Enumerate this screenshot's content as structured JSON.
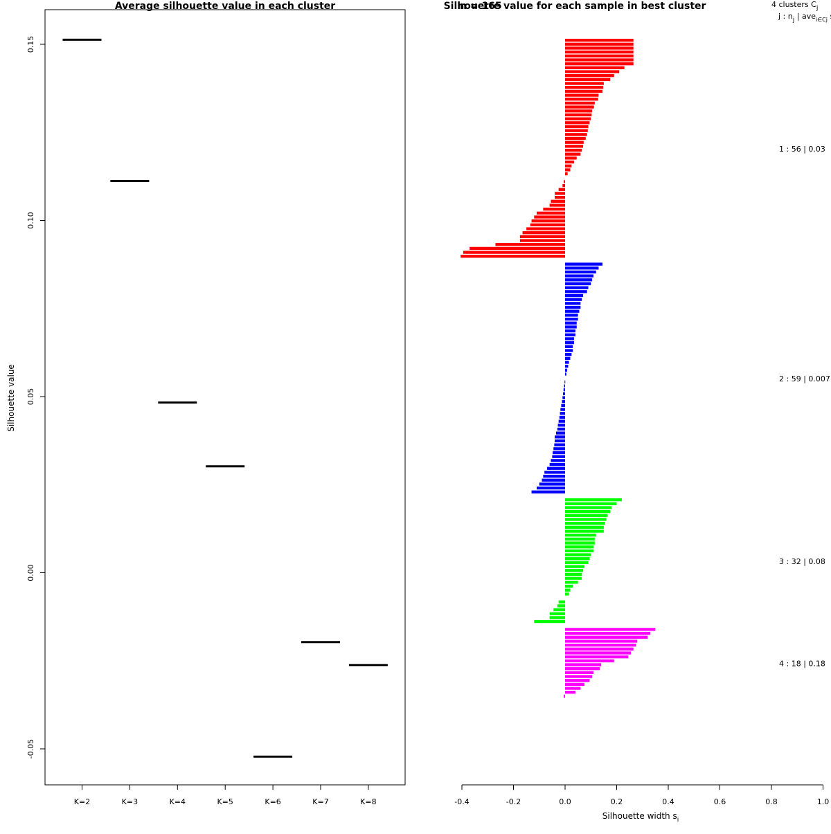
{
  "chart_data": [
    {
      "type": "scatter",
      "title": "Average silhouette value in each cluster",
      "xlabel": "",
      "ylabel": "Silhouette value",
      "categories": [
        "K=2",
        "K=3",
        "K=4",
        "K=5",
        "K=6",
        "K=7",
        "K=8"
      ],
      "values": [
        0.1513,
        0.1112,
        0.0483,
        0.0302,
        -0.0522,
        -0.0197,
        -0.0262
      ],
      "ylim": [
        -0.06,
        0.16
      ],
      "yticks": [
        "-0.05",
        "0.00",
        "0.05",
        "0.10",
        "0.15"
      ],
      "marker": "horizontal-segment",
      "color": "#000000"
    },
    {
      "type": "bar",
      "orientation": "horizontal",
      "title": "Silhouette value for each sample in best cluster",
      "title_overlap_text": "n = 165",
      "xlabel": "Silhouette width s",
      "xlabel_subscript": "i",
      "xlim": [
        -0.4,
        1.0
      ],
      "xticks": [
        "-0.4",
        "-0.2",
        "0.0",
        "0.2",
        "0.4",
        "0.6",
        "0.8",
        "1.0"
      ],
      "legend_header_line1": "4 clusters  C",
      "legend_header_line1_sub": "j",
      "legend_header_line2": "j :  n",
      "legend_header_line2_sub": "j",
      "legend_header_line2_rest": " | ave",
      "legend_header_line2_sub2": "i∈Cj",
      "legend_header_line2_tail": "  s",
      "clusters": [
        {
          "name": "1",
          "label": "1 :   56  |  0.03",
          "color": "#ff0000",
          "values": [
            0.265,
            0.265,
            0.265,
            0.265,
            0.265,
            0.265,
            0.265,
            0.23,
            0.21,
            0.19,
            0.175,
            0.15,
            0.148,
            0.145,
            0.13,
            0.128,
            0.115,
            0.112,
            0.105,
            0.103,
            0.1,
            0.095,
            0.09,
            0.088,
            0.085,
            0.08,
            0.072,
            0.07,
            0.065,
            0.06,
            0.045,
            0.035,
            0.025,
            0.02,
            0.01,
            0.0,
            -0.005,
            -0.01,
            -0.025,
            -0.04,
            -0.04,
            -0.055,
            -0.06,
            -0.085,
            -0.11,
            -0.12,
            -0.13,
            -0.135,
            -0.15,
            -0.165,
            -0.175,
            -0.175,
            -0.27,
            -0.37,
            -0.395,
            -0.405
          ]
        },
        {
          "name": "2",
          "label": "2 :   59  |  0.007",
          "color": "#0000ff",
          "values": [
            0.145,
            0.13,
            0.12,
            0.11,
            0.105,
            0.1,
            0.09,
            0.085,
            0.07,
            0.065,
            0.06,
            0.06,
            0.055,
            0.05,
            0.05,
            0.045,
            0.045,
            0.04,
            0.04,
            0.035,
            0.035,
            0.03,
            0.03,
            0.025,
            0.02,
            0.015,
            0.012,
            0.008,
            0.005,
            0.0,
            -0.002,
            -0.004,
            -0.006,
            -0.008,
            -0.01,
            -0.012,
            -0.015,
            -0.018,
            -0.02,
            -0.022,
            -0.025,
            -0.028,
            -0.03,
            -0.035,
            -0.04,
            -0.04,
            -0.042,
            -0.045,
            -0.048,
            -0.05,
            -0.055,
            -0.06,
            -0.07,
            -0.08,
            -0.085,
            -0.09,
            -0.1,
            -0.11,
            -0.13
          ]
        },
        {
          "name": "3",
          "label": "3 :   32  |  0.08",
          "color": "#00ff00",
          "values": [
            0.22,
            0.2,
            0.18,
            0.175,
            0.165,
            0.16,
            0.155,
            0.15,
            0.15,
            0.12,
            0.115,
            0.115,
            0.11,
            0.11,
            0.1,
            0.095,
            0.09,
            0.075,
            0.07,
            0.065,
            0.065,
            0.05,
            0.03,
            0.02,
            0.015,
            0.0,
            -0.025,
            -0.03,
            -0.045,
            -0.06,
            -0.06,
            -0.12
          ]
        },
        {
          "name": "4",
          "label": "4 :   18  |  0.18",
          "color": "#ff00ff",
          "values": [
            0.35,
            0.33,
            0.32,
            0.28,
            0.275,
            0.265,
            0.255,
            0.245,
            0.19,
            0.14,
            0.135,
            0.11,
            0.105,
            0.095,
            0.075,
            0.06,
            0.04,
            -0.005
          ]
        }
      ]
    }
  ]
}
